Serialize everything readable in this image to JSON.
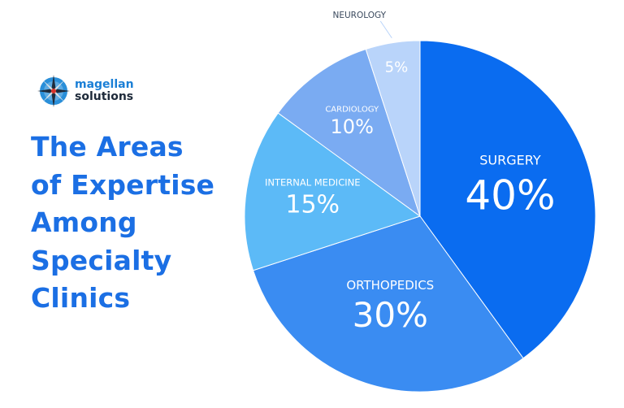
{
  "brand": {
    "line1": "magellan",
    "line2": "solutions"
  },
  "title_lines": [
    "The Areas",
    "of Expertise",
    "Among",
    "Specialty",
    "Clinics"
  ],
  "chart_data": {
    "type": "pie",
    "slices": [
      {
        "label": "SURGERY",
        "value": 40,
        "value_label": "40%",
        "color": "#0a6cf0"
      },
      {
        "label": "ORTHOPEDICS",
        "value": 30,
        "value_label": "30%",
        "color": "#3a8cf2"
      },
      {
        "label": "INTERNAL MEDICINE",
        "value": 15,
        "value_label": "15%",
        "color": "#5cbaf7"
      },
      {
        "label": "CARDIOLOGY",
        "value": 10,
        "value_label": "10%",
        "color": "#7aabf2"
      },
      {
        "label": "NEUROLOGY",
        "value": 5,
        "value_label": "5%",
        "color": "#b9d4fa"
      }
    ]
  },
  "colors": {
    "title": "#1b6fe4",
    "brand_primary": "#1b7fd6",
    "brand_secondary": "#1e2a3a"
  }
}
